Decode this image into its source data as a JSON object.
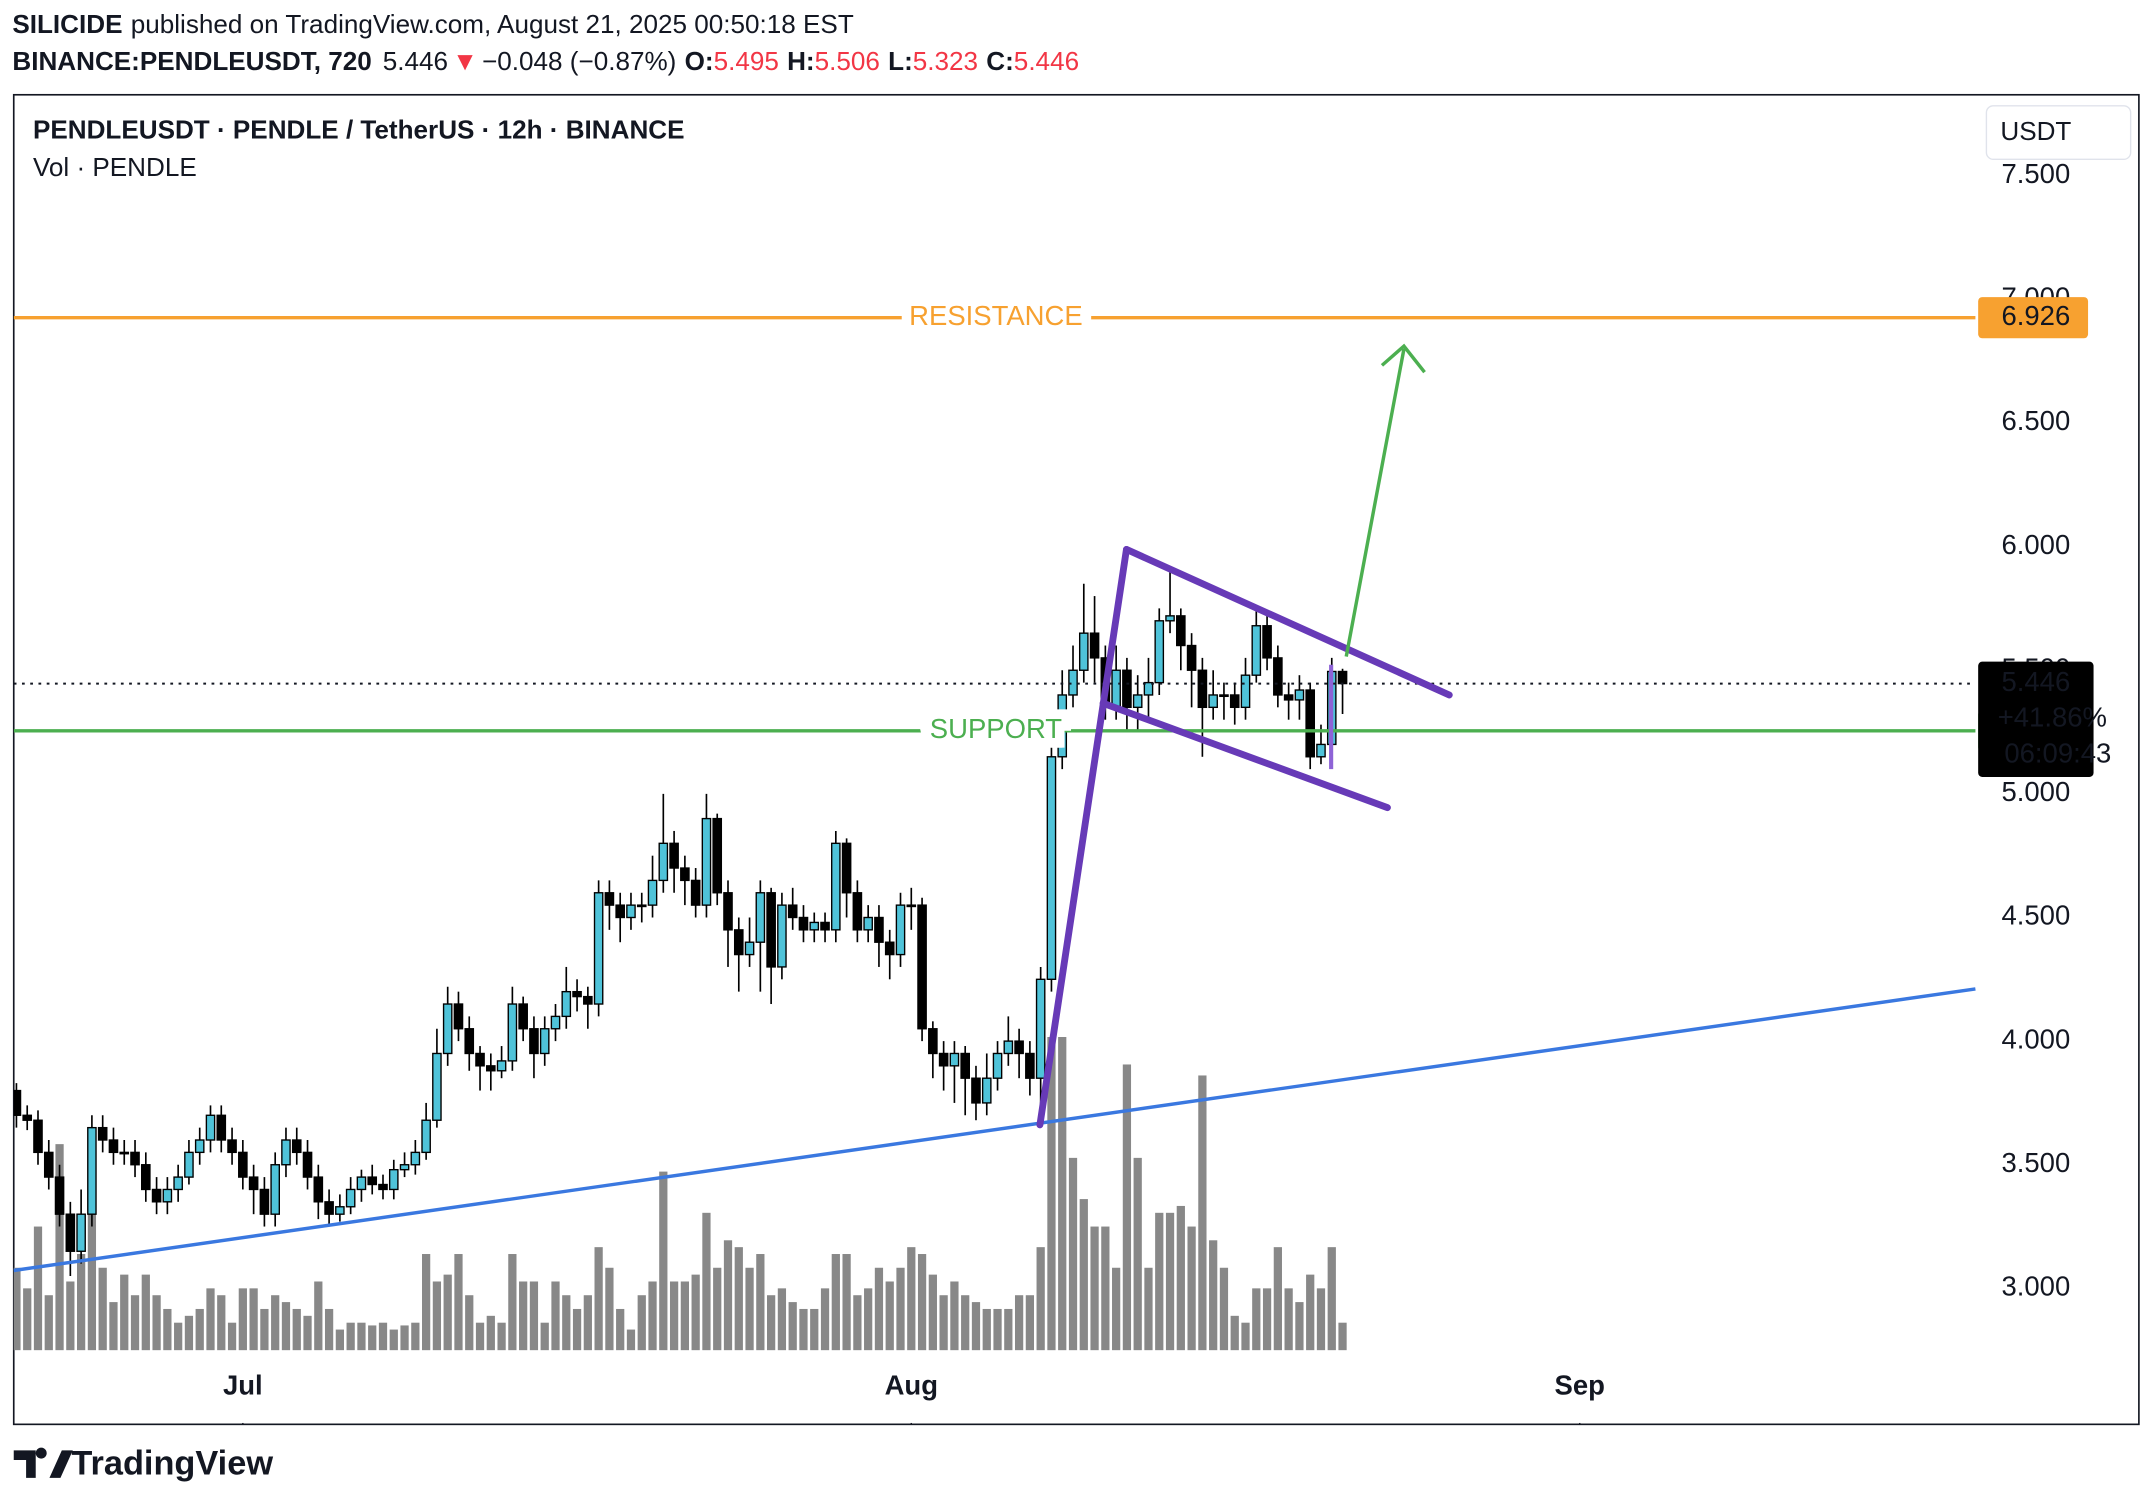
{
  "header": {
    "author": "SILICIDE",
    "published": "published on TradingView.com, August 21, 2025 00:50:18 EST",
    "symbol": "BINANCE:PENDLEUSDT, 720",
    "arrow": "▼",
    "change": "−0.048 (−0.87%)",
    "ohlc_labels": [
      "O:",
      "H:",
      "L:",
      "C:"
    ]
  },
  "chart_data": {
    "type": "candlestick",
    "title": "PENDLEUSDT · PENDLE / TetherUS · 12h · BINANCE",
    "subtitle": "Vol · PENDLE",
    "currency": "USDT",
    "open": [
      3.8,
      3.7,
      3.68,
      3.55,
      3.45,
      3.3,
      3.15,
      3.3,
      3.65,
      3.6,
      3.55,
      3.55,
      3.5,
      3.4,
      3.35,
      3.4,
      3.45,
      3.55,
      3.6,
      3.7,
      3.6,
      3.55,
      3.45,
      3.4,
      3.3,
      3.5,
      3.6,
      3.55,
      3.45,
      3.35,
      3.3,
      3.33,
      3.4,
      3.45,
      3.42,
      3.4,
      3.48,
      3.5,
      3.55,
      3.68,
      3.95,
      4.15,
      4.05,
      3.95,
      3.9,
      3.88,
      3.92,
      4.15,
      4.05,
      3.95,
      4.05,
      4.1,
      4.2,
      4.18,
      4.15,
      4.6,
      4.55,
      4.5,
      4.55,
      4.55,
      4.65,
      4.8,
      4.7,
      4.65,
      4.55,
      4.9,
      4.6,
      4.45,
      4.35,
      4.4,
      4.6,
      4.3,
      4.55,
      4.5,
      4.45,
      4.48,
      4.45,
      4.8,
      4.6,
      4.45,
      4.5,
      4.4,
      4.35,
      4.55,
      4.55,
      4.05,
      3.95,
      3.9,
      3.95,
      3.85,
      3.75,
      3.85,
      3.95,
      4.0,
      3.95,
      3.85,
      4.25,
      5.15,
      5.4,
      5.5,
      5.65,
      5.55,
      5.35,
      5.5,
      5.35,
      5.4,
      5.45,
      5.7,
      5.72,
      5.6,
      5.5,
      5.35,
      5.4,
      5.4,
      5.35,
      5.48,
      5.68,
      5.55,
      5.4,
      5.38,
      5.42,
      5.15,
      5.2,
      5.495
    ],
    "high": [
      3.83,
      3.74,
      3.72,
      3.6,
      3.5,
      3.35,
      3.4,
      3.7,
      3.7,
      3.65,
      3.6,
      3.6,
      3.55,
      3.45,
      3.45,
      3.5,
      3.6,
      3.65,
      3.74,
      3.74,
      3.65,
      3.6,
      3.5,
      3.45,
      3.55,
      3.65,
      3.65,
      3.6,
      3.5,
      3.4,
      3.38,
      3.45,
      3.48,
      3.5,
      3.46,
      3.52,
      3.55,
      3.6,
      3.75,
      4.05,
      4.22,
      4.2,
      4.1,
      3.98,
      3.95,
      3.98,
      4.22,
      4.18,
      4.1,
      4.1,
      4.15,
      4.3,
      4.25,
      4.22,
      4.65,
      4.65,
      4.6,
      4.6,
      4.6,
      4.75,
      5.0,
      4.85,
      4.75,
      4.7,
      5.0,
      4.92,
      4.65,
      4.5,
      4.5,
      4.65,
      4.62,
      4.6,
      4.62,
      4.55,
      4.52,
      4.52,
      4.85,
      4.82,
      4.65,
      4.55,
      4.55,
      4.45,
      4.6,
      4.62,
      4.58,
      4.08,
      4.0,
      4.0,
      3.98,
      3.9,
      3.95,
      4.0,
      4.1,
      4.05,
      4.0,
      4.3,
      5.2,
      5.5,
      5.6,
      5.85,
      5.8,
      5.6,
      5.6,
      5.55,
      5.48,
      5.55,
      5.75,
      5.9,
      5.75,
      5.65,
      5.55,
      5.5,
      5.45,
      5.45,
      5.55,
      5.75,
      5.72,
      5.6,
      5.45,
      5.48,
      5.45,
      5.28,
      5.55,
      5.506
    ],
    "low": [
      3.65,
      3.64,
      3.5,
      3.4,
      3.25,
      3.05,
      3.1,
      3.25,
      3.55,
      3.5,
      3.5,
      3.45,
      3.35,
      3.3,
      3.3,
      3.35,
      3.42,
      3.5,
      3.55,
      3.55,
      3.5,
      3.4,
      3.3,
      3.25,
      3.25,
      3.45,
      3.5,
      3.4,
      3.28,
      3.25,
      3.27,
      3.3,
      3.35,
      3.38,
      3.36,
      3.36,
      3.45,
      3.46,
      3.52,
      3.65,
      3.9,
      4.0,
      3.88,
      3.8,
      3.8,
      3.85,
      3.88,
      4.0,
      3.85,
      3.9,
      4.0,
      4.05,
      4.12,
      4.05,
      4.1,
      4.45,
      4.4,
      4.45,
      4.48,
      4.5,
      4.6,
      4.6,
      4.55,
      4.5,
      4.5,
      4.55,
      4.3,
      4.2,
      4.3,
      4.2,
      4.15,
      4.25,
      4.45,
      4.4,
      4.4,
      4.4,
      4.4,
      4.5,
      4.4,
      4.4,
      4.3,
      4.25,
      4.3,
      4.45,
      4.0,
      3.85,
      3.8,
      3.75,
      3.7,
      3.68,
      3.7,
      3.8,
      3.9,
      3.85,
      3.78,
      3.7,
      4.2,
      5.1,
      5.35,
      5.45,
      5.45,
      5.3,
      5.3,
      5.25,
      5.25,
      5.3,
      5.4,
      5.65,
      5.5,
      5.35,
      5.15,
      5.3,
      5.3,
      5.28,
      5.3,
      5.45,
      5.5,
      5.35,
      5.3,
      5.3,
      5.1,
      5.12,
      5.18,
      5.323
    ],
    "close": [
      3.7,
      3.68,
      3.55,
      3.45,
      3.3,
      3.15,
      3.3,
      3.65,
      3.6,
      3.55,
      3.55,
      3.5,
      3.4,
      3.35,
      3.4,
      3.45,
      3.55,
      3.6,
      3.7,
      3.6,
      3.55,
      3.45,
      3.4,
      3.3,
      3.5,
      3.6,
      3.55,
      3.45,
      3.35,
      3.3,
      3.33,
      3.4,
      3.45,
      3.42,
      3.4,
      3.48,
      3.5,
      3.55,
      3.68,
      3.95,
      4.15,
      4.05,
      3.95,
      3.9,
      3.88,
      3.92,
      4.15,
      4.05,
      3.95,
      4.05,
      4.1,
      4.2,
      4.18,
      4.15,
      4.6,
      4.55,
      4.5,
      4.55,
      4.55,
      4.65,
      4.8,
      4.7,
      4.65,
      4.55,
      4.9,
      4.6,
      4.45,
      4.35,
      4.4,
      4.6,
      4.3,
      4.55,
      4.5,
      4.45,
      4.48,
      4.45,
      4.8,
      4.6,
      4.45,
      4.5,
      4.4,
      4.35,
      4.55,
      4.55,
      4.05,
      3.95,
      3.9,
      3.95,
      3.85,
      3.75,
      3.85,
      3.95,
      4.0,
      3.95,
      3.85,
      4.25,
      5.15,
      5.4,
      5.5,
      5.65,
      5.55,
      5.35,
      5.5,
      5.35,
      5.4,
      5.45,
      5.7,
      5.72,
      5.6,
      5.5,
      5.35,
      5.4,
      5.4,
      5.35,
      5.48,
      5.68,
      5.55,
      5.4,
      5.38,
      5.42,
      5.15,
      5.2,
      5.495,
      5.446
    ],
    "volume": [
      60,
      45,
      90,
      40,
      150,
      50,
      70,
      155,
      60,
      35,
      55,
      40,
      55,
      40,
      30,
      20,
      25,
      30,
      45,
      40,
      20,
      45,
      45,
      30,
      40,
      35,
      30,
      25,
      50,
      30,
      15,
      20,
      20,
      18,
      20,
      15,
      18,
      20,
      70,
      50,
      55,
      70,
      40,
      20,
      25,
      20,
      70,
      50,
      50,
      20,
      50,
      40,
      30,
      40,
      75,
      60,
      30,
      15,
      40,
      50,
      130,
      50,
      50,
      55,
      100,
      60,
      80,
      75,
      60,
      70,
      40,
      45,
      35,
      30,
      30,
      45,
      70,
      70,
      40,
      45,
      60,
      50,
      60,
      75,
      70,
      55,
      40,
      50,
      40,
      35,
      30,
      30,
      30,
      40,
      40,
      75,
      228,
      228,
      140,
      110,
      90,
      90,
      60,
      208,
      140,
      60,
      100,
      100,
      105,
      90,
      200,
      80,
      60,
      25,
      20,
      45,
      45,
      75,
      45,
      35,
      55,
      45,
      75,
      20
    ],
    "up_color": "#4fc3d9",
    "down_color": "#000000",
    "volume_color": "#888888",
    "xlim": [
      -0.25,
      181.7
    ],
    "ylim": [
      2.75,
      7.822
    ],
    "y2lim": [
      0,
      913
    ],
    "xticks": [
      {
        "value": 21,
        "label": "Jul"
      },
      {
        "value": 83,
        "label": "Aug"
      },
      {
        "value": 145,
        "label": "Sep"
      }
    ],
    "yticks": [
      {
        "value": 3,
        "label": "3.000"
      },
      {
        "value": 3.5,
        "label": "3.500"
      },
      {
        "value": 4,
        "label": "4.000"
      },
      {
        "value": 4.5,
        "label": "4.500"
      },
      {
        "value": 5,
        "label": "5.000"
      },
      {
        "value": 5.5,
        "label": "5.500"
      },
      {
        "value": 6,
        "label": "6.000"
      },
      {
        "value": 6.5,
        "label": "6.500"
      },
      {
        "value": 7,
        "label": "7.000"
      },
      {
        "value": 7.5,
        "label": "7.500"
      }
    ],
    "levels": [
      {
        "name": "RESISTANCE",
        "value": 6.926,
        "color": "#f7a130"
      },
      {
        "name": "SUPPORT",
        "value": 5.255,
        "color": "#4caf50"
      }
    ],
    "last_change": "+41.86%",
    "countdown": "06:09:43"
  },
  "footer": {
    "brand": "TradingView"
  }
}
